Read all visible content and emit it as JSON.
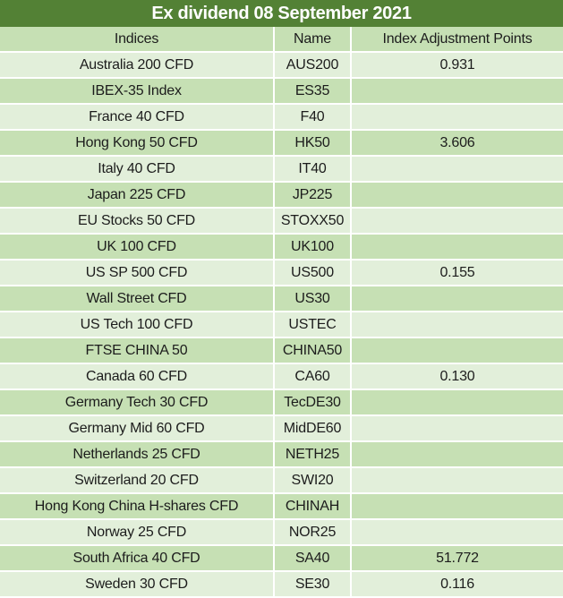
{
  "title": "Ex dividend 08 September 2021",
  "table": {
    "columns": {
      "indices": "Indices",
      "name": "Name",
      "points": "Index Adjustment Points"
    },
    "rows": [
      {
        "indices": "Australia 200 CFD",
        "name": "AUS200",
        "points": "0.931"
      },
      {
        "indices": "IBEX-35 Index",
        "name": "ES35",
        "points": ""
      },
      {
        "indices": "France 40 CFD",
        "name": "F40",
        "points": ""
      },
      {
        "indices": "Hong Kong 50 CFD",
        "name": "HK50",
        "points": "3.606"
      },
      {
        "indices": "Italy 40 CFD",
        "name": "IT40",
        "points": ""
      },
      {
        "indices": "Japan 225 CFD",
        "name": "JP225",
        "points": ""
      },
      {
        "indices": "EU Stocks 50 CFD",
        "name": "STOXX50",
        "points": ""
      },
      {
        "indices": "UK 100 CFD",
        "name": "UK100",
        "points": ""
      },
      {
        "indices": "US SP 500 CFD",
        "name": "US500",
        "points": "0.155"
      },
      {
        "indices": "Wall Street CFD",
        "name": "US30",
        "points": ""
      },
      {
        "indices": "US Tech 100 CFD",
        "name": "USTEC",
        "points": ""
      },
      {
        "indices": "FTSE CHINA 50",
        "name": "CHINA50",
        "points": ""
      },
      {
        "indices": "Canada 60 CFD",
        "name": "CA60",
        "points": "0.130"
      },
      {
        "indices": "Germany Tech 30 CFD",
        "name": "TecDE30",
        "points": ""
      },
      {
        "indices": "Germany Mid 60 CFD",
        "name": "MidDE60",
        "points": ""
      },
      {
        "indices": "Netherlands 25 CFD",
        "name": "NETH25",
        "points": ""
      },
      {
        "indices": "Switzerland 20 CFD",
        "name": "SWI20",
        "points": ""
      },
      {
        "indices": "Hong Kong China H-shares CFD",
        "name": "CHINAH",
        "points": ""
      },
      {
        "indices": "Norway 25 CFD",
        "name": "NOR25",
        "points": ""
      },
      {
        "indices": "South Africa 40 CFD",
        "name": "SA40",
        "points": "51.772"
      },
      {
        "indices": "Sweden 30 CFD",
        "name": "SE30",
        "points": "0.116"
      }
    ]
  },
  "colors": {
    "title_bg": "#538135",
    "title_text": "#ffffff",
    "header_bg": "#c6e0b4",
    "row_light": "#e2efda",
    "row_dark": "#c6e0b4",
    "grid": "#ffffff",
    "text": "#1c1c1c"
  }
}
